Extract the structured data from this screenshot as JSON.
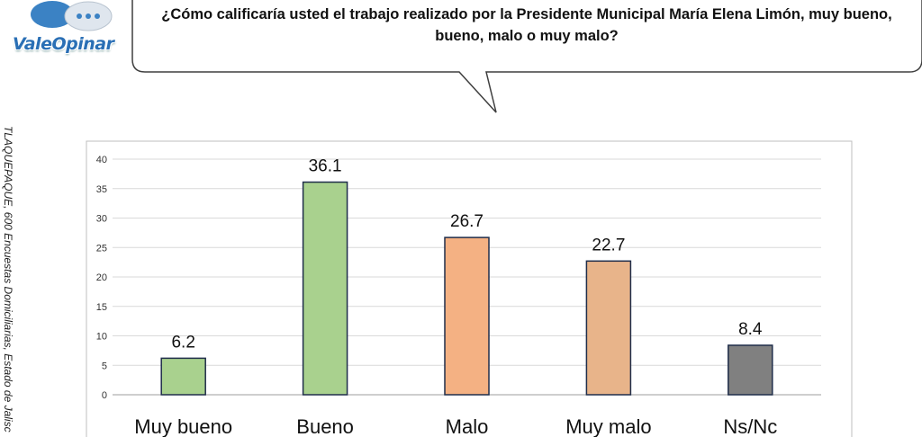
{
  "logo": {
    "text": "ValeOpinar"
  },
  "question": {
    "text": "¿Cómo calificaría usted el trabajo realizado por la Presidente Municipal María Elena Limón, muy bueno, bueno, malo o muy malo?"
  },
  "side_note": {
    "text": "TLAQUEPAQUE, 600 Encuestas Domiciliarias, Estado de Jalisc"
  },
  "chart_data": {
    "type": "bar",
    "categories": [
      "Muy bueno",
      "Bueno",
      "Malo",
      "Muy malo",
      "Ns/Nc"
    ],
    "values": [
      6.2,
      36.1,
      26.7,
      22.7,
      8.4
    ],
    "value_labels": [
      "6.2",
      "36.1",
      "26.7",
      "22.7",
      "8.4"
    ],
    "colors": [
      "#a9d18e",
      "#a9d18e",
      "#f4b183",
      "#e8b48a",
      "#808080"
    ],
    "ylim": [
      0,
      40
    ],
    "yticks": [
      0,
      5,
      10,
      15,
      20,
      25,
      30,
      35,
      40
    ],
    "grid": true,
    "legend": "none"
  }
}
